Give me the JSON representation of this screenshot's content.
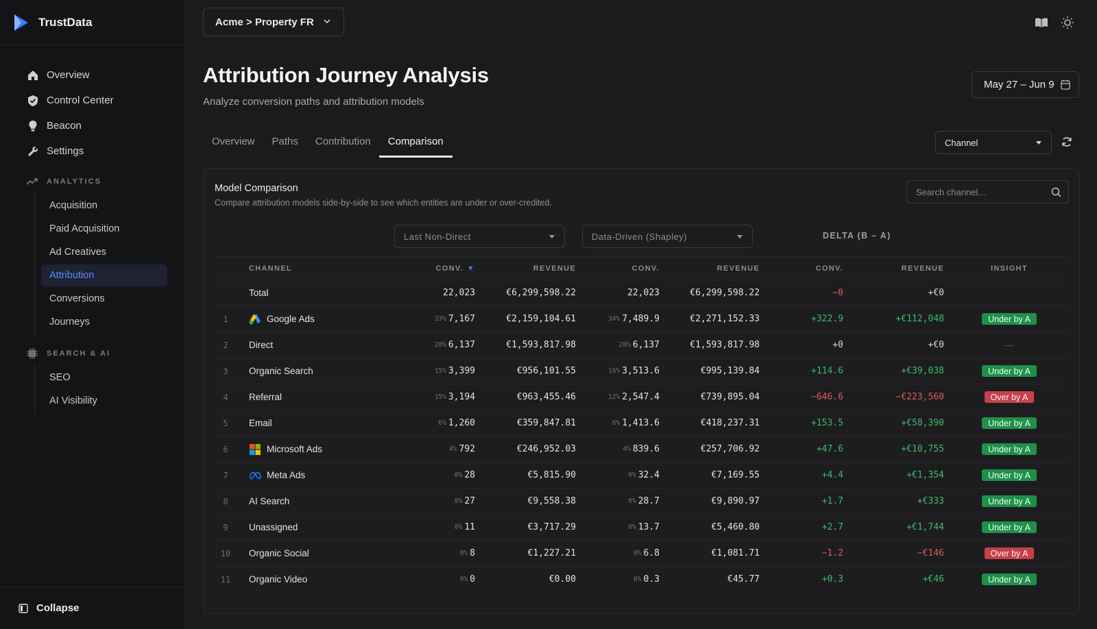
{
  "brand": {
    "name": "TrustData"
  },
  "sidebar": {
    "main_items": [
      {
        "label": "Overview",
        "icon": "home-icon"
      },
      {
        "label": "Control Center",
        "icon": "shield-icon"
      },
      {
        "label": "Beacon",
        "icon": "lightbulb-icon"
      },
      {
        "label": "Settings",
        "icon": "wrench-icon"
      }
    ],
    "analytics_label": "ANALYTICS",
    "analytics_items": [
      "Acquisition",
      "Paid Acquisition",
      "Ad Creatives",
      "Attribution",
      "Conversions",
      "Journeys"
    ],
    "active_item": "Attribution",
    "search_ai_label": "SEARCH & AI",
    "search_ai_items": [
      "SEO",
      "AI Visibility"
    ],
    "collapse_label": "Collapse"
  },
  "topbar": {
    "property": "Acme > Property FR"
  },
  "header": {
    "title": "Attribution Journey Analysis",
    "subtitle": "Analyze conversion paths and attribution models",
    "date_range": "May 27 – Jun 9"
  },
  "tabs": [
    "Overview",
    "Paths",
    "Contribution",
    "Comparison"
  ],
  "active_tab": "Comparison",
  "dimension_select": "Channel",
  "card": {
    "title": "Model Comparison",
    "subtitle": "Compare attribution models side-by-side to see which entities are under or over-credited.",
    "search_placeholder": "Search channel...",
    "model_a": "Last Non-Direct",
    "model_b": "Data-Driven (Shapley)",
    "delta_label": "DELTA (B – A)"
  },
  "table": {
    "headers": {
      "channel": "CHANNEL",
      "conv_a": "CONV.",
      "rev_a": "REVENUE",
      "conv_b": "CONV.",
      "rev_b": "REVENUE",
      "d_conv": "CONV.",
      "d_rev": "REVENUE",
      "insight": "INSIGHT"
    },
    "total": {
      "channel": "Total",
      "conv_a": "22,023",
      "rev_a": "€6,299,598.22",
      "conv_b": "22,023",
      "rev_b": "€6,299,598.22",
      "d_conv": "−0",
      "d_rev": "+€0"
    },
    "rows": [
      {
        "idx": "1",
        "channel": "Google Ads",
        "logo": "google-ads",
        "pct_a": "33%",
        "conv_a": "7,167",
        "rev_a": "€2,159,104.61",
        "pct_b": "34%",
        "conv_b": "7,489.9",
        "rev_b": "€2,271,152.33",
        "d_conv": "+322.9",
        "d_rev": "+€112,048",
        "sign": "pos",
        "insight": "Under by A",
        "insight_type": "under"
      },
      {
        "idx": "2",
        "channel": "Direct",
        "logo": "",
        "pct_a": "28%",
        "conv_a": "6,137",
        "rev_a": "€1,593,817.98",
        "pct_b": "28%",
        "conv_b": "6,137",
        "rev_b": "€1,593,817.98",
        "d_conv": "+0",
        "d_rev": "+€0",
        "sign": "neu",
        "insight": "—",
        "insight_type": "none"
      },
      {
        "idx": "3",
        "channel": "Organic Search",
        "logo": "",
        "pct_a": "15%",
        "conv_a": "3,399",
        "rev_a": "€956,101.55",
        "pct_b": "16%",
        "conv_b": "3,513.6",
        "rev_b": "€995,139.84",
        "d_conv": "+114.6",
        "d_rev": "+€39,038",
        "sign": "pos",
        "insight": "Under by A",
        "insight_type": "under"
      },
      {
        "idx": "4",
        "channel": "Referral",
        "logo": "",
        "pct_a": "15%",
        "conv_a": "3,194",
        "rev_a": "€963,455.46",
        "pct_b": "12%",
        "conv_b": "2,547.4",
        "rev_b": "€739,895.04",
        "d_conv": "−646.6",
        "d_rev": "−€223,560",
        "sign": "neg",
        "insight": "Over by A",
        "insight_type": "over"
      },
      {
        "idx": "5",
        "channel": "Email",
        "logo": "",
        "pct_a": "6%",
        "conv_a": "1,260",
        "rev_a": "€359,847.81",
        "pct_b": "6%",
        "conv_b": "1,413.6",
        "rev_b": "€418,237.31",
        "d_conv": "+153.5",
        "d_rev": "+€58,390",
        "sign": "pos",
        "insight": "Under by A",
        "insight_type": "under"
      },
      {
        "idx": "6",
        "channel": "Microsoft Ads",
        "logo": "microsoft",
        "pct_a": "4%",
        "conv_a": "792",
        "rev_a": "€246,952.03",
        "pct_b": "4%",
        "conv_b": "839.6",
        "rev_b": "€257,706.92",
        "d_conv": "+47.6",
        "d_rev": "+€10,755",
        "sign": "pos",
        "insight": "Under by A",
        "insight_type": "under"
      },
      {
        "idx": "7",
        "channel": "Meta Ads",
        "logo": "meta",
        "pct_a": "0%",
        "conv_a": "28",
        "rev_a": "€5,815.90",
        "pct_b": "0%",
        "conv_b": "32.4",
        "rev_b": "€7,169.55",
        "d_conv": "+4.4",
        "d_rev": "+€1,354",
        "sign": "pos",
        "insight": "Under by A",
        "insight_type": "under"
      },
      {
        "idx": "8",
        "channel": "AI Search",
        "logo": "",
        "pct_a": "0%",
        "conv_a": "27",
        "rev_a": "€9,558.38",
        "pct_b": "0%",
        "conv_b": "28.7",
        "rev_b": "€9,890.97",
        "d_conv": "+1.7",
        "d_rev": "+€333",
        "sign": "pos",
        "insight": "Under by A",
        "insight_type": "under"
      },
      {
        "idx": "9",
        "channel": "Unassigned",
        "logo": "",
        "pct_a": "0%",
        "conv_a": "11",
        "rev_a": "€3,717.29",
        "pct_b": "0%",
        "conv_b": "13.7",
        "rev_b": "€5,460.80",
        "d_conv": "+2.7",
        "d_rev": "+€1,744",
        "sign": "pos",
        "insight": "Under by A",
        "insight_type": "under"
      },
      {
        "idx": "10",
        "channel": "Organic Social",
        "logo": "",
        "pct_a": "0%",
        "conv_a": "8",
        "rev_a": "€1,227.21",
        "pct_b": "0%",
        "conv_b": "6.8",
        "rev_b": "€1,081.71",
        "d_conv": "−1.2",
        "d_rev": "−€146",
        "sign": "neg",
        "insight": "Over by A",
        "insight_type": "over"
      },
      {
        "idx": "11",
        "channel": "Organic Video",
        "logo": "",
        "pct_a": "0%",
        "conv_a": "0",
        "rev_a": "€0.00",
        "pct_b": "0%",
        "conv_b": "0.3",
        "rev_b": "€45.77",
        "d_conv": "+0.3",
        "d_rev": "+€46",
        "sign": "pos",
        "insight": "Under by A",
        "insight_type": "under"
      }
    ]
  },
  "colors": {
    "accent": "#5a8cff",
    "positive": "#3fba6b",
    "negative": "#e05a5a",
    "badge_under": "#1f8f4a",
    "badge_over": "#c7404a"
  }
}
